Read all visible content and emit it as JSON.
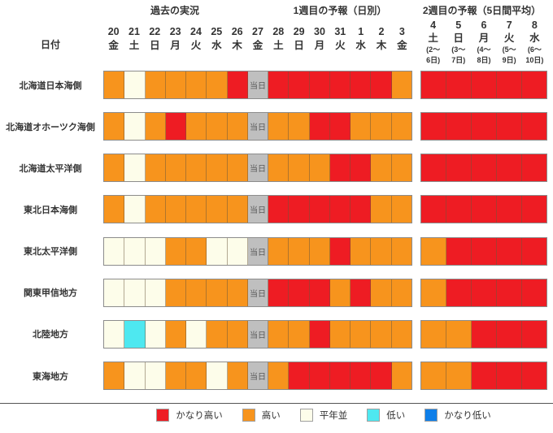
{
  "header": {
    "past_title": "過去の実況",
    "week1_title": "1週目の予報（日別）",
    "week2_title": "2週目の予報（5日間平均）",
    "date_label": "日付"
  },
  "days": [
    {
      "num": "20",
      "dow": "金"
    },
    {
      "num": "21",
      "dow": "土"
    },
    {
      "num": "22",
      "dow": "日"
    },
    {
      "num": "23",
      "dow": "月"
    },
    {
      "num": "24",
      "dow": "火"
    },
    {
      "num": "25",
      "dow": "水"
    },
    {
      "num": "26",
      "dow": "木"
    },
    {
      "num": "27",
      "dow": "金"
    },
    {
      "num": "28",
      "dow": "土"
    },
    {
      "num": "29",
      "dow": "日"
    },
    {
      "num": "30",
      "dow": "月"
    },
    {
      "num": "31",
      "dow": "火"
    },
    {
      "num": "1",
      "dow": "水"
    },
    {
      "num": "2",
      "dow": "木"
    },
    {
      "num": "3",
      "dow": "金"
    }
  ],
  "week2_days": [
    {
      "num": "4",
      "dow": "土",
      "r1": "(2～",
      "r2": "6日)"
    },
    {
      "num": "5",
      "dow": "日",
      "r1": "(3～",
      "r2": "7日)"
    },
    {
      "num": "6",
      "dow": "月",
      "r1": "(4～",
      "r2": "8日)"
    },
    {
      "num": "7",
      "dow": "火",
      "r1": "(5～",
      "r2": "9日)"
    },
    {
      "num": "8",
      "dow": "水",
      "r1": "(6～",
      "r2": "10日)"
    }
  ],
  "today_label": "当日",
  "legend": [
    {
      "label": "かなり高い"
    },
    {
      "label": "高い"
    },
    {
      "label": "平年並"
    },
    {
      "label": "低い"
    },
    {
      "label": "かなり低い"
    }
  ],
  "colors": {
    "かなり高い": "#ee1c23",
    "高い": "#f7941d",
    "平年並": "#fdfdea",
    "低い": "#4ee8f0",
    "かなり低い": "#0e7fe9",
    "当日": "#bfbfbf"
  },
  "chart_data": {
    "type": "heatmap",
    "sections": [
      {
        "title": "過去の実況",
        "columns": [
          "20金",
          "21土",
          "22日",
          "23月",
          "24火",
          "25水",
          "26木"
        ]
      },
      {
        "title": "当日",
        "columns": [
          "27金"
        ]
      },
      {
        "title": "1週目の予報（日別）",
        "columns": [
          "28土",
          "29日",
          "30月",
          "31火",
          "1水",
          "2木",
          "3金"
        ]
      },
      {
        "title": "2週目の予報（5日間平均）",
        "columns": [
          "4土(2～6日)",
          "5日(3～7日)",
          "6月(4～8日)",
          "7火(5～9日)",
          "8水(6～10日)"
        ]
      }
    ],
    "levels": [
      "かなり高い",
      "高い",
      "平年並",
      "低い",
      "かなり低い"
    ],
    "legend_position": "bottom",
    "rows": [
      {
        "region": "北海道日本海側",
        "values": [
          "高い",
          "平年並",
          "高い",
          "高い",
          "高い",
          "高い",
          "かなり高い",
          "当日",
          "かなり高い",
          "かなり高い",
          "かなり高い",
          "かなり高い",
          "かなり高い",
          "かなり高い",
          "高い"
        ],
        "week2": [
          "かなり高い",
          "かなり高い",
          "かなり高い",
          "かなり高い",
          "かなり高い"
        ]
      },
      {
        "region": "北海道オホーツク海側",
        "values": [
          "高い",
          "平年並",
          "高い",
          "かなり高い",
          "高い",
          "高い",
          "高い",
          "当日",
          "高い",
          "高い",
          "かなり高い",
          "かなり高い",
          "高い",
          "高い",
          "高い"
        ],
        "week2": [
          "かなり高い",
          "かなり高い",
          "かなり高い",
          "かなり高い",
          "かなり高い"
        ]
      },
      {
        "region": "北海道太平洋側",
        "values": [
          "高い",
          "平年並",
          "高い",
          "高い",
          "高い",
          "高い",
          "高い",
          "当日",
          "高い",
          "高い",
          "高い",
          "かなり高い",
          "かなり高い",
          "高い",
          "高い"
        ],
        "week2": [
          "かなり高い",
          "かなり高い",
          "かなり高い",
          "かなり高い",
          "かなり高い"
        ]
      },
      {
        "region": "東北日本海側",
        "values": [
          "高い",
          "平年並",
          "高い",
          "高い",
          "高い",
          "高い",
          "高い",
          "当日",
          "かなり高い",
          "かなり高い",
          "かなり高い",
          "かなり高い",
          "かなり高い",
          "高い",
          "高い"
        ],
        "week2": [
          "かなり高い",
          "かなり高い",
          "かなり高い",
          "かなり高い",
          "かなり高い"
        ]
      },
      {
        "region": "東北太平洋側",
        "values": [
          "平年並",
          "平年並",
          "平年並",
          "高い",
          "高い",
          "平年並",
          "平年並",
          "当日",
          "高い",
          "高い",
          "高い",
          "かなり高い",
          "高い",
          "高い",
          "高い"
        ],
        "week2": [
          "高い",
          "かなり高い",
          "かなり高い",
          "かなり高い",
          "かなり高い"
        ]
      },
      {
        "region": "関東甲信地方",
        "values": [
          "平年並",
          "平年並",
          "平年並",
          "高い",
          "高い",
          "高い",
          "高い",
          "当日",
          "かなり高い",
          "かなり高い",
          "かなり高い",
          "高い",
          "かなり高い",
          "高い",
          "高い"
        ],
        "week2": [
          "高い",
          "かなり高い",
          "かなり高い",
          "かなり高い",
          "かなり高い"
        ]
      },
      {
        "region": "北陸地方",
        "values": [
          "平年並",
          "低い",
          "平年並",
          "高い",
          "平年並",
          "高い",
          "高い",
          "当日",
          "高い",
          "高い",
          "かなり高い",
          "高い",
          "高い",
          "高い",
          "高い"
        ],
        "week2": [
          "高い",
          "高い",
          "かなり高い",
          "かなり高い",
          "かなり高い"
        ]
      },
      {
        "region": "東海地方",
        "values": [
          "高い",
          "平年並",
          "平年並",
          "高い",
          "高い",
          "平年並",
          "高い",
          "当日",
          "高い",
          "かなり高い",
          "かなり高い",
          "かなり高い",
          "かなり高い",
          "かなり高い",
          "高い"
        ],
        "week2": [
          "高い",
          "高い",
          "かなり高い",
          "かなり高い",
          "かなり高い"
        ]
      }
    ]
  }
}
